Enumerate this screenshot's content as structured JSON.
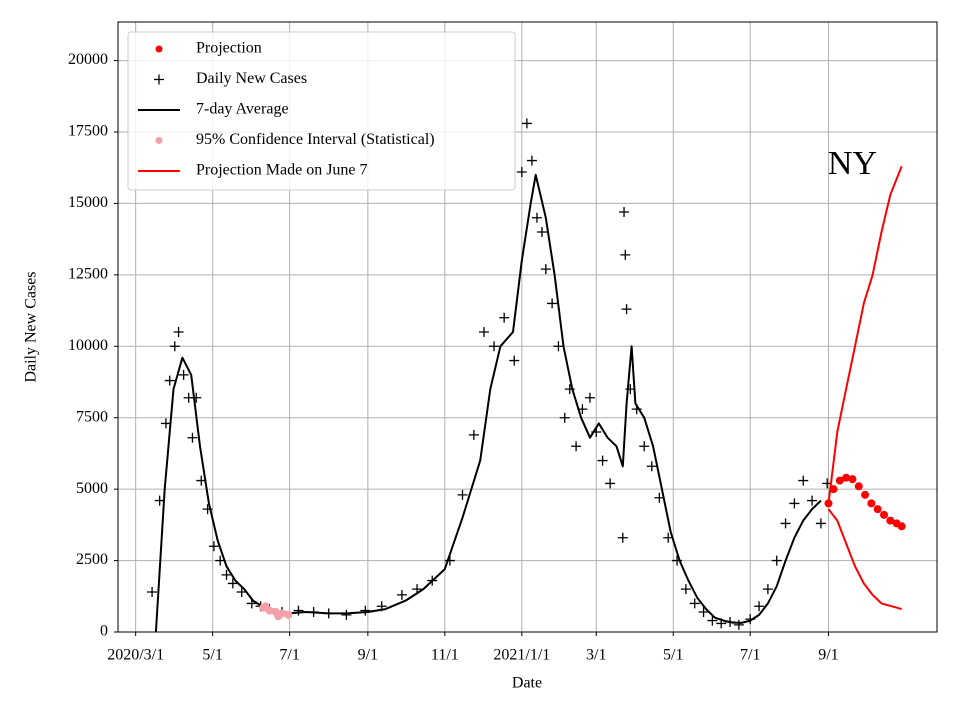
{
  "chart_data": {
    "type": "line",
    "xlabel": "Date",
    "ylabel": "Daily New Cases",
    "annotation": {
      "text": "NY",
      "x": "2021-09-20",
      "y": 16300
    },
    "xlim": [
      "2020-02-16",
      "2021-11-26"
    ],
    "ylim": [
      0,
      21350
    ],
    "xticks": [
      {
        "value": "2020-03-01",
        "label": "2020/3/1"
      },
      {
        "value": "2020-05-01",
        "label": "5/1"
      },
      {
        "value": "2020-07-01",
        "label": "7/1"
      },
      {
        "value": "2020-09-01",
        "label": "9/1"
      },
      {
        "value": "2020-11-01",
        "label": "11/1"
      },
      {
        "value": "2021-01-01",
        "label": "2021/1/1"
      },
      {
        "value": "2021-03-01",
        "label": "3/1"
      },
      {
        "value": "2021-05-01",
        "label": "5/1"
      },
      {
        "value": "2021-07-01",
        "label": "7/1"
      },
      {
        "value": "2021-09-01",
        "label": "9/1"
      }
    ],
    "yticks": [
      0,
      2500,
      5000,
      7500,
      10000,
      12500,
      15000,
      17500,
      20000
    ],
    "grid": true,
    "legend": "upper left",
    "series": [
      {
        "name": "Projection",
        "marker": "dot",
        "color": "#ff0000",
        "x": [
          "2021-09-01",
          "2021-09-05",
          "2021-09-10",
          "2021-09-15",
          "2021-09-20",
          "2021-09-25",
          "2021-09-30",
          "2021-10-05",
          "2021-10-10",
          "2021-10-15",
          "2021-10-20",
          "2021-10-25",
          "2021-10-29"
        ],
        "values": [
          4500,
          5000,
          5300,
          5400,
          5350,
          5100,
          4800,
          4500,
          4300,
          4100,
          3900,
          3800,
          3700
        ]
      },
      {
        "name": "Daily New Cases",
        "marker": "plus",
        "color": "#000000",
        "x": [
          "2020-03-14",
          "2020-03-20",
          "2020-03-25",
          "2020-03-28",
          "2020-04-01",
          "2020-04-04",
          "2020-04-08",
          "2020-04-12",
          "2020-04-15",
          "2020-04-18",
          "2020-04-22",
          "2020-04-27",
          "2020-05-02",
          "2020-05-07",
          "2020-05-12",
          "2020-05-17",
          "2020-05-24",
          "2020-06-01",
          "2020-06-08",
          "2020-06-15",
          "2020-06-25",
          "2020-07-08",
          "2020-07-20",
          "2020-08-01",
          "2020-08-15",
          "2020-08-30",
          "2020-09-12",
          "2020-09-28",
          "2020-10-10",
          "2020-10-22",
          "2020-11-05",
          "2020-11-15",
          "2020-11-24",
          "2020-12-02",
          "2020-12-10",
          "2020-12-18",
          "2020-12-26",
          "2021-01-01",
          "2021-01-05",
          "2021-01-09",
          "2021-01-13",
          "2021-01-17",
          "2021-01-20",
          "2021-01-25",
          "2021-01-30",
          "2021-02-04",
          "2021-02-08",
          "2021-02-13",
          "2021-02-18",
          "2021-02-24",
          "2021-03-01",
          "2021-03-06",
          "2021-03-12",
          "2021-03-22",
          "2021-03-23",
          "2021-03-24",
          "2021-03-25",
          "2021-03-28",
          "2021-04-02",
          "2021-04-08",
          "2021-04-14",
          "2021-04-20",
          "2021-04-27",
          "2021-05-04",
          "2021-05-11",
          "2021-05-18",
          "2021-05-25",
          "2021-06-01",
          "2021-06-08",
          "2021-06-15",
          "2021-06-22",
          "2021-07-01",
          "2021-07-08",
          "2021-07-15",
          "2021-07-22",
          "2021-07-29",
          "2021-08-05",
          "2021-08-12",
          "2021-08-19",
          "2021-08-26",
          "2021-08-31"
        ],
        "values": [
          1400,
          4600,
          7300,
          8800,
          10000,
          10500,
          9000,
          8200,
          6800,
          8200,
          5300,
          4300,
          3000,
          2500,
          2000,
          1700,
          1400,
          1000,
          900,
          800,
          700,
          750,
          700,
          650,
          600,
          750,
          900,
          1300,
          1500,
          1800,
          2500,
          4800,
          6900,
          10500,
          10000,
          11000,
          9500,
          16100,
          17800,
          16500,
          14500,
          14000,
          12700,
          11500,
          10000,
          7500,
          8500,
          6500,
          7800,
          8200,
          7000,
          6000,
          5200,
          3300,
          14700,
          13200,
          11300,
          8500,
          7800,
          6500,
          5800,
          4700,
          3300,
          2500,
          1500,
          1000,
          700,
          400,
          300,
          350,
          250,
          450,
          900,
          1500,
          2500,
          3800,
          4500,
          5300,
          4600,
          3800,
          5200
        ]
      },
      {
        "name": "7-day Average",
        "marker": "line",
        "color": "#000000",
        "x": [
          "2020-03-17",
          "2020-03-24",
          "2020-03-31",
          "2020-04-07",
          "2020-04-14",
          "2020-04-21",
          "2020-04-28",
          "2020-05-05",
          "2020-05-12",
          "2020-05-19",
          "2020-05-26",
          "2020-06-02",
          "2020-06-09",
          "2020-06-16",
          "2020-06-23",
          "2020-06-30",
          "2020-07-14",
          "2020-08-01",
          "2020-08-15",
          "2020-09-01",
          "2020-09-15",
          "2020-10-01",
          "2020-10-15",
          "2020-11-01",
          "2020-11-15",
          "2020-11-29",
          "2020-12-07",
          "2020-12-15",
          "2020-12-25",
          "2021-01-01",
          "2021-01-08",
          "2021-01-12",
          "2021-01-20",
          "2021-01-27",
          "2021-02-03",
          "2021-02-10",
          "2021-02-17",
          "2021-02-24",
          "2021-03-03",
          "2021-03-10",
          "2021-03-17",
          "2021-03-22",
          "2021-03-25",
          "2021-03-29",
          "2021-04-01",
          "2021-04-08",
          "2021-04-15",
          "2021-04-22",
          "2021-04-29",
          "2021-05-06",
          "2021-05-13",
          "2021-05-20",
          "2021-05-27",
          "2021-06-03",
          "2021-06-10",
          "2021-06-17",
          "2021-06-24",
          "2021-07-01",
          "2021-07-08",
          "2021-07-15",
          "2021-07-22",
          "2021-07-29",
          "2021-08-05",
          "2021-08-12",
          "2021-08-19",
          "2021-08-26"
        ],
        "values": [
          0,
          5000,
          8500,
          9600,
          9000,
          6500,
          4500,
          3200,
          2300,
          1800,
          1500,
          1100,
          900,
          750,
          680,
          650,
          700,
          650,
          650,
          700,
          800,
          1100,
          1500,
          2200,
          4000,
          6000,
          8500,
          10000,
          10500,
          13000,
          15000,
          16000,
          14500,
          12500,
          10000,
          8500,
          7500,
          6800,
          7300,
          6800,
          6500,
          5800,
          8000,
          10000,
          8000,
          7500,
          6500,
          5000,
          3500,
          2500,
          1800,
          1200,
          800,
          500,
          400,
          330,
          320,
          400,
          600,
          1000,
          1600,
          2500,
          3300,
          3900,
          4300,
          4600
        ]
      },
      {
        "name": "95% Confidence Interval (Statistical)",
        "marker": "dot",
        "color": "#f4a0a8",
        "x": [
          "2020-06-10",
          "2020-06-12",
          "2020-06-15",
          "2020-06-20",
          "2020-06-22",
          "2020-06-25",
          "2020-06-30"
        ],
        "values": [
          850,
          900,
          750,
          700,
          550,
          650,
          600
        ]
      },
      {
        "name": "Projection Made on June 7",
        "marker": "band",
        "color": "#ff0000",
        "x_upper": [
          "2021-09-01",
          "2021-09-08",
          "2021-09-15",
          "2021-09-22",
          "2021-09-29",
          "2021-10-06",
          "2021-10-13",
          "2021-10-20",
          "2021-10-29"
        ],
        "upper": [
          4500,
          7000,
          8500,
          10000,
          11500,
          12500,
          14000,
          15300,
          16300
        ],
        "x_lower": [
          "2021-09-01",
          "2021-09-08",
          "2021-09-15",
          "2021-09-22",
          "2021-09-29",
          "2021-10-06",
          "2021-10-13",
          "2021-10-29"
        ],
        "lower": [
          4300,
          3900,
          3100,
          2300,
          1700,
          1300,
          1000,
          800
        ]
      }
    ]
  }
}
